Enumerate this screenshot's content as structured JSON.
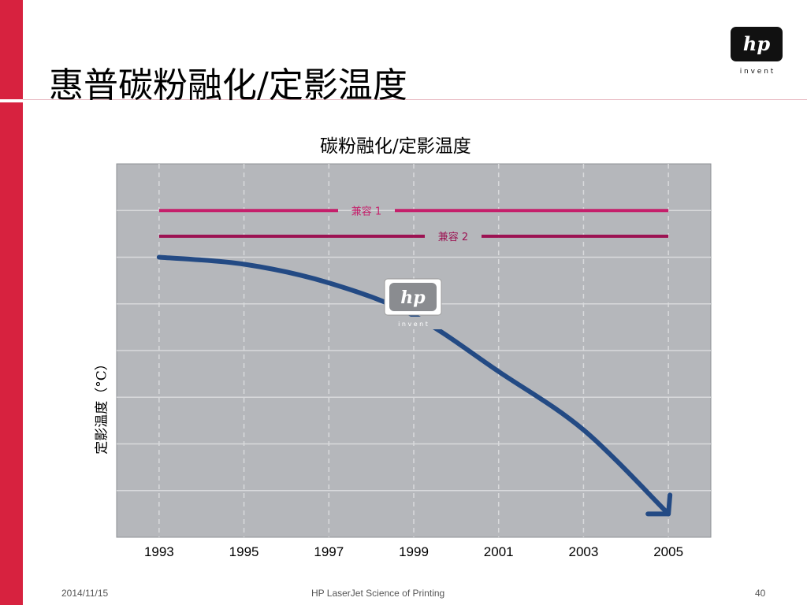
{
  "slide": {
    "title": "惠普碳粉融化/定影温度",
    "footer_date": "2014/11/15",
    "footer_center": "HP LaserJet Science of Printing",
    "page_number": "40"
  },
  "logo": {
    "mark": "hp",
    "tagline": "i n v e n t",
    "icon": "hp-invent-logo"
  },
  "colors": {
    "brand_red": "#d7223f",
    "plot_bg": "#b5b7bb",
    "trend": "#234a84",
    "compat1": "#c51f6b",
    "compat2": "#9c1252"
  },
  "chart_data": {
    "type": "line",
    "title": "碳粉融化/定影温度",
    "xlabel": "",
    "ylabel": "定影温度（°C）",
    "x_ticks": [
      1993,
      1995,
      1997,
      1999,
      2001,
      2003,
      2005
    ],
    "xlim": [
      1992,
      2006
    ],
    "ylim": [
      0,
      8
    ],
    "y_tick_labels": false,
    "grid": true,
    "series": [
      {
        "name": "兼容 1",
        "x": [
          1993,
          2005
        ],
        "y": [
          7.0,
          7.0
        ]
      },
      {
        "name": "兼容 2",
        "x": [
          1993,
          2005
        ],
        "y": [
          6.45,
          6.45
        ]
      },
      {
        "name": "",
        "x": [
          1993,
          1995,
          1997,
          1999,
          2001,
          2003,
          2005
        ],
        "y": [
          6.0,
          5.85,
          5.45,
          4.75,
          3.55,
          2.3,
          0.5
        ]
      }
    ]
  }
}
